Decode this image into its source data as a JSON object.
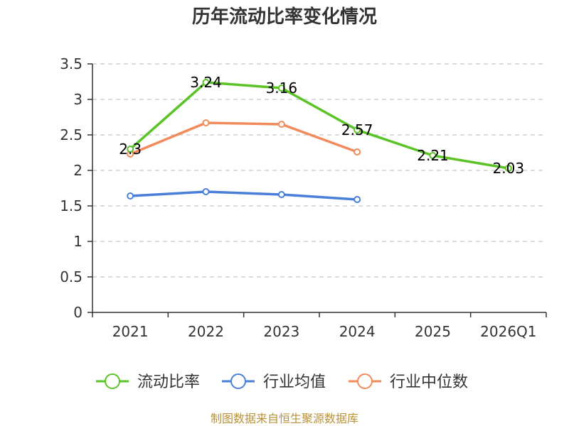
{
  "chart_data": {
    "type": "line",
    "title": "历年流动比率变化情况",
    "categories": [
      "2021",
      "2022",
      "2023",
      "2024",
      "2025",
      "2026Q1"
    ],
    "y_ticks": [
      "0",
      "0.5",
      "1",
      "1.5",
      "2",
      "2.5",
      "3",
      "3.5"
    ],
    "ylim": [
      0,
      3.5
    ],
    "grid": true,
    "legend_position": "bottom",
    "series": [
      {
        "name": "流动比率",
        "color": "#5ac325",
        "values": [
          2.3,
          3.24,
          3.16,
          2.57,
          2.21,
          2.03
        ],
        "labels": [
          "2.3",
          "3.24",
          "3.16",
          "2.57",
          "2.21",
          "2.03"
        ]
      },
      {
        "name": "行业均值",
        "color": "#4a7fd9",
        "values": [
          1.64,
          1.7,
          1.66,
          1.59,
          null,
          null
        ]
      },
      {
        "name": "行业中位数",
        "color": "#f28b5b",
        "values": [
          2.23,
          2.67,
          2.65,
          2.26,
          null,
          null
        ]
      }
    ],
    "source": "制图数据来自恒生聚源数据库"
  }
}
